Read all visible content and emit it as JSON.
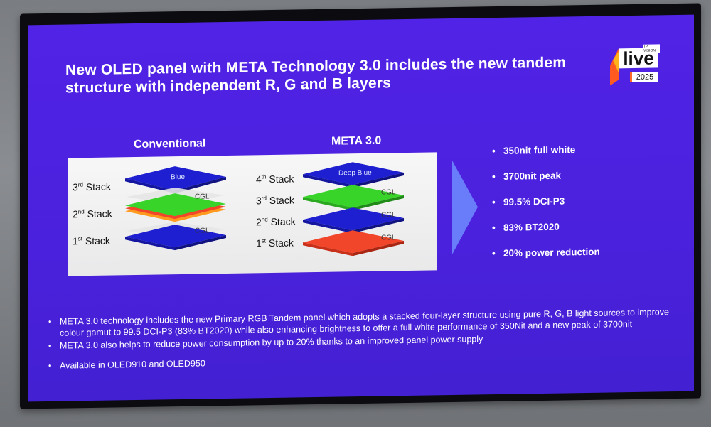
{
  "slide": {
    "title": "New OLED panel with META Technology 3.0 includes the new tandem structure with independent R, G and B layers",
    "logo": {
      "word": "live",
      "brand": "TP VISION",
      "year": "2025"
    },
    "conventional": {
      "heading": "Conventional",
      "stacks": [
        {
          "num": "3",
          "suffix": "rd",
          "label": " Stack"
        },
        {
          "num": "2",
          "suffix": "nd",
          "label": " Stack"
        },
        {
          "num": "1",
          "suffix": "st",
          "label": " Stack"
        }
      ],
      "layer_labels": {
        "top": "Blue",
        "cgl1": "CGL",
        "cgl2": "CGL"
      }
    },
    "meta": {
      "heading": "META 3.0",
      "stacks": [
        {
          "num": "4",
          "suffix": "th",
          "label": " Stack"
        },
        {
          "num": "3",
          "suffix": "rd",
          "label": " Stack"
        },
        {
          "num": "2",
          "suffix": "nd",
          "label": " Stack"
        },
        {
          "num": "1",
          "suffix": "st",
          "label": " Stack"
        }
      ],
      "layer_labels": {
        "top": "Deep Blue",
        "cgl1": "CGL",
        "cgl2": "CGL",
        "cgl3": "CGL"
      }
    },
    "highlights": [
      "350nit full white",
      "3700nit peak",
      "99.5% DCI-P3",
      "83% BT2020",
      "20% power reduction"
    ],
    "notes": [
      "META 3.0 technology includes the new Primary RGB Tandem panel which adopts a stacked four-layer structure using pure R, G, B light sources to improve colour gamut to 99.5 DCI-P3 (83% BT2020) while also enhancing brightness to offer a full white performance of 350Nit and a new peak of 3700nit",
      "META 3.0 also helps to reduce power consumption by up to 20% thanks to an improved panel power supply",
      "Available in OLED910 and OLED950"
    ],
    "colors": {
      "slide_bg": "#4a21dc",
      "blue_layer": "#1e1fd0",
      "green_layer": "#39d42a",
      "red_layer": "#f2462a",
      "orange_layer": "#ff9a1f"
    }
  }
}
